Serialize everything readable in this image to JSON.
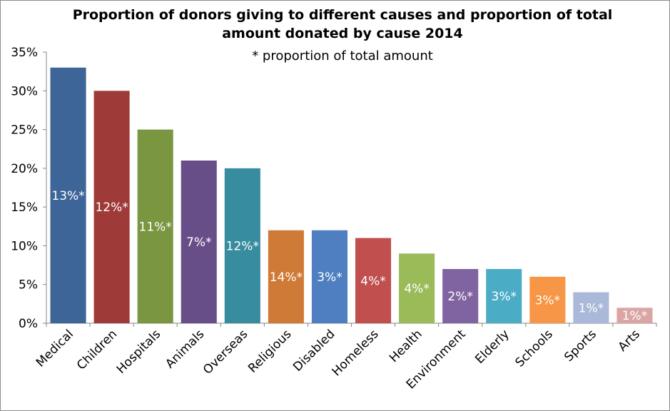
{
  "chart_data": {
    "type": "bar",
    "title_lines": [
      "Proportion of donors giving to different causes and proportion of total",
      "amount donated by cause 2014"
    ],
    "subtitle": "* proportion of total amount",
    "categories": [
      "Medical",
      "Children",
      "Hospitals",
      "Animals",
      "Overseas",
      "Religious",
      "Disabled",
      "Homeless",
      "Health",
      "Environment",
      "Elderly",
      "Schools",
      "Sports",
      "Arts"
    ],
    "values": [
      33,
      30,
      25,
      21,
      20,
      12,
      12,
      11,
      9,
      7,
      7,
      6,
      4,
      2
    ],
    "data_labels": [
      "13%*",
      "12%*",
      "11%*",
      "7%*",
      "12%*",
      "14%*",
      "3%*",
      "4%*",
      "4%*",
      "2%*",
      "3%*",
      "3%*",
      "1%*",
      "1%*"
    ],
    "colors": [
      "#3e6598",
      "#9e3b39",
      "#7a9640",
      "#684e89",
      "#378c9f",
      "#d07a37",
      "#4f7fc0",
      "#c04f4d",
      "#9bbb59",
      "#8064a2",
      "#4bacc6",
      "#f79646",
      "#aab9da",
      "#dba5a4"
    ],
    "ylim": [
      0,
      35
    ],
    "yticks": [
      0,
      5,
      10,
      15,
      20,
      25,
      30,
      35
    ],
    "ytick_labels": [
      "0%",
      "5%",
      "10%",
      "15%",
      "20%",
      "25%",
      "30%",
      "35%"
    ],
    "xlabel": "",
    "ylabel": "",
    "grid": false,
    "legend": "none"
  }
}
